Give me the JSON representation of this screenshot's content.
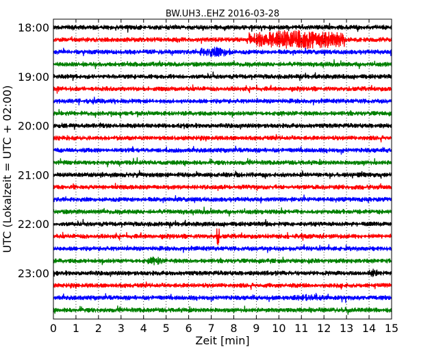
{
  "chart_data": {
    "type": "line",
    "title": "BW.UH3..EHZ 2016-03-28",
    "xlabel": "Zeit  [min]",
    "ylabel": "UTC (Lokalzeit = UTC + 02:00)",
    "x_ticks": [
      "0",
      "1",
      "2",
      "3",
      "4",
      "5",
      "6",
      "7",
      "8",
      "9",
      "10",
      "11",
      "12",
      "13",
      "14",
      "15"
    ],
    "xlim": [
      0,
      15
    ],
    "y_ticks": [
      "18:00",
      "19:00",
      "20:00",
      "21:00",
      "22:00",
      "23:00"
    ],
    "trace_start_utc": [
      "18:00",
      "18:15",
      "18:30",
      "18:45",
      "19:00",
      "19:15",
      "19:30",
      "19:45",
      "20:00",
      "20:15",
      "20:30",
      "20:45",
      "21:00",
      "21:15",
      "21:30",
      "21:45",
      "22:00",
      "22:15",
      "22:30",
      "22:45",
      "23:00",
      "23:15",
      "23:30",
      "23:45"
    ],
    "trace_colors": [
      "#000000",
      "#ff0000",
      "#0000ff",
      "#008000"
    ],
    "grid": true,
    "events": [
      {
        "trace": "18:15",
        "start_min": 8.6,
        "end_min": 12.9,
        "strength": 5.5
      },
      {
        "trace": "18:30",
        "start_min": 6.5,
        "end_min": 7.9,
        "strength": 3.0
      },
      {
        "trace": "22:15",
        "start_min": 7.2,
        "end_min": 7.35,
        "strength": 6.0
      },
      {
        "trace": "22:45",
        "start_min": 4.2,
        "end_min": 4.8,
        "strength": 2.5
      },
      {
        "trace": "23:00",
        "start_min": 14.0,
        "end_min": 14.4,
        "strength": 2.5
      },
      {
        "trace": "23:30",
        "start_min": 10.5,
        "end_min": 12.0,
        "strength": 2.0
      }
    ]
  }
}
